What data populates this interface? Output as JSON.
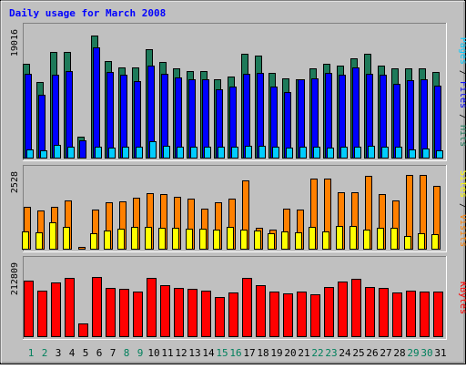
{
  "chart_data": [
    {
      "type": "bar",
      "title": "Daily usage for March 2008",
      "ylabel": "Pages / Files / Hits",
      "ymax_label": "19016",
      "ylim": [
        0,
        19016
      ],
      "categories": [
        "1",
        "2",
        "3",
        "4",
        "5",
        "6",
        "7",
        "8",
        "9",
        "10",
        "11",
        "12",
        "13",
        "14",
        "15",
        "16",
        "17",
        "18",
        "19",
        "20",
        "21",
        "22",
        "23",
        "24",
        "25",
        "26",
        "27",
        "28",
        "29",
        "30",
        "31"
      ],
      "series": [
        {
          "name": "Hits",
          "color": "#1e7a5a",
          "values": [
            14000,
            11300,
            15800,
            15800,
            3300,
            18200,
            14400,
            13500,
            13500,
            16200,
            14300,
            13300,
            12900,
            13000,
            11700,
            12100,
            15500,
            15200,
            12700,
            11900,
            11700,
            13400,
            14000,
            13800,
            14900,
            15500,
            13700,
            13300,
            13400,
            13400,
            12800
          ]
        },
        {
          "name": "Files",
          "color": "#0000ff",
          "values": [
            12600,
            9500,
            12400,
            12900,
            2700,
            16400,
            12800,
            12400,
            11400,
            13700,
            12500,
            12000,
            11700,
            11800,
            10300,
            10600,
            12500,
            12700,
            10700,
            9900,
            11700,
            11900,
            12700,
            12400,
            13500,
            12600,
            12400,
            11000,
            11600,
            11800,
            10800
          ]
        },
        {
          "name": "Pages",
          "color": "#00ccff",
          "values": [
            1400,
            1200,
            2000,
            1700,
            200,
            1700,
            1600,
            1800,
            1700,
            2500,
            1900,
            1700,
            1700,
            1800,
            1700,
            1800,
            1900,
            1900,
            1700,
            1600,
            1700,
            1700,
            1600,
            1700,
            1800,
            1900,
            1800,
            1800,
            1400,
            1500,
            1200
          ]
        }
      ]
    },
    {
      "type": "bar",
      "ylabel": "Sites / Visits",
      "ymax_label": "2528",
      "ylim": [
        0,
        2528
      ],
      "categories": [
        "1",
        "2",
        "3",
        "4",
        "5",
        "6",
        "7",
        "8",
        "9",
        "10",
        "11",
        "12",
        "13",
        "14",
        "15",
        "16",
        "17",
        "18",
        "19",
        "20",
        "21",
        "22",
        "23",
        "24",
        "25",
        "26",
        "27",
        "28",
        "29",
        "30",
        "31"
      ],
      "series": [
        {
          "name": "Visits",
          "color": "#ff8000",
          "values": [
            1400,
            1270,
            1410,
            1600,
            100,
            1300,
            1550,
            1580,
            1700,
            1850,
            1820,
            1730,
            1680,
            1350,
            1560,
            1670,
            2250,
            700,
            650,
            1330,
            1320,
            2330,
            2330,
            1870,
            1870,
            2400,
            1800,
            1620,
            2430,
            2440,
            2080
          ]
        },
        {
          "name": "Sites",
          "color": "#ffff00",
          "values": [
            580,
            570,
            900,
            730,
            30,
            540,
            620,
            690,
            730,
            750,
            710,
            700,
            690,
            690,
            660,
            740,
            660,
            610,
            530,
            580,
            570,
            740,
            590,
            760,
            780,
            660,
            700,
            710,
            440,
            530,
            500
          ]
        }
      ]
    },
    {
      "type": "bar",
      "ylabel": "KBytes",
      "ymax_label": "212809",
      "ylim": [
        0,
        212809
      ],
      "categories": [
        "1",
        "2",
        "3",
        "4",
        "5",
        "6",
        "7",
        "8",
        "9",
        "10",
        "11",
        "12",
        "13",
        "14",
        "15",
        "16",
        "17",
        "18",
        "19",
        "20",
        "21",
        "22",
        "23",
        "24",
        "25",
        "26",
        "27",
        "28",
        "29",
        "30",
        "31"
      ],
      "series": [
        {
          "name": "KBytes",
          "color": "#ff0000",
          "values": [
            162000,
            135000,
            158000,
            172000,
            40000,
            174000,
            143000,
            140000,
            131000,
            172000,
            149000,
            141000,
            138000,
            135000,
            116000,
            128000,
            171000,
            150000,
            131000,
            126000,
            132000,
            123000,
            144000,
            159000,
            167000,
            144000,
            141000,
            128000,
            133000,
            131000,
            131000
          ]
        }
      ]
    }
  ],
  "weekend_days": [
    "1",
    "2",
    "8",
    "9",
    "15",
    "16",
    "22",
    "23",
    "29",
    "30"
  ],
  "colors": {
    "background": "#c0c0c0",
    "title_text": "#0000ff",
    "weekend_label": "#00805c",
    "weekday_label": "#000000",
    "axis_label": "#000000"
  }
}
